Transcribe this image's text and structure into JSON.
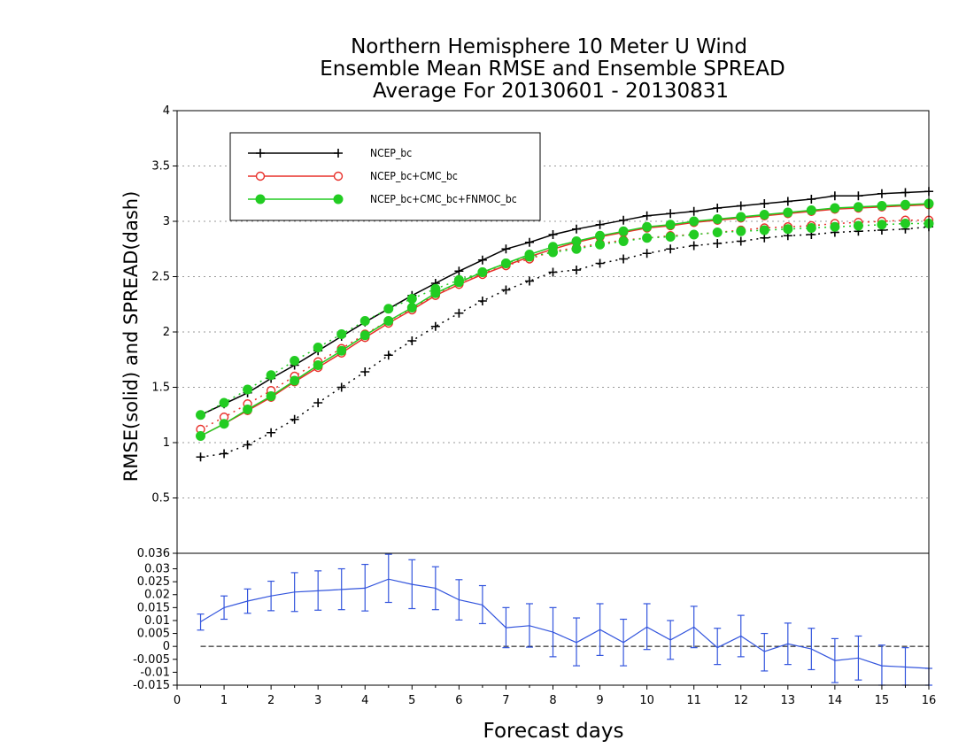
{
  "chart_data": [
    {
      "type": "line",
      "title": [
        "Northern Hemisphere 10 Meter U Wind",
        "Ensemble Mean RMSE and Ensemble SPREAD",
        "Average For 20130601 - 20130831"
      ],
      "ylabel": "RMSE(solid) and SPREAD(dash)",
      "xlabel": "",
      "xlim": [
        0,
        16
      ],
      "ylim": [
        0,
        4
      ],
      "yticks": [
        "0.5",
        "1",
        "1.5",
        "2",
        "2.5",
        "3",
        "3.5",
        "4"
      ],
      "grid": true,
      "legend_position": "top-left",
      "x": [
        0.5,
        1,
        1.5,
        2,
        2.5,
        3,
        3.5,
        4,
        4.5,
        5,
        5.5,
        6,
        6.5,
        7,
        7.5,
        8,
        8.5,
        9,
        9.5,
        10,
        10.5,
        11,
        11.5,
        12,
        12.5,
        13,
        13.5,
        14,
        14.5,
        15,
        15.5,
        16
      ],
      "series": [
        {
          "name": "NCEP_bc",
          "color": "#000000",
          "marker": "plus",
          "rmse": [
            1.25,
            1.35,
            1.45,
            1.58,
            1.7,
            1.83,
            1.96,
            2.09,
            2.21,
            2.33,
            2.44,
            2.55,
            2.65,
            2.75,
            2.81,
            2.88,
            2.93,
            2.97,
            3.01,
            3.05,
            3.07,
            3.09,
            3.12,
            3.14,
            3.16,
            3.18,
            3.2,
            3.23,
            3.23,
            3.25,
            3.26,
            3.27
          ],
          "spread": [
            0.87,
            0.9,
            0.98,
            1.09,
            1.21,
            1.36,
            1.5,
            1.64,
            1.79,
            1.92,
            2.05,
            2.17,
            2.28,
            2.38,
            2.46,
            2.54,
            2.56,
            2.62,
            2.66,
            2.71,
            2.75,
            2.78,
            2.8,
            2.82,
            2.85,
            2.87,
            2.88,
            2.9,
            2.91,
            2.92,
            2.93,
            2.95
          ]
        },
        {
          "name": "NCEP_bc+CMC_bc",
          "color": "#e8302a",
          "marker": "open-circle",
          "rmse": [
            1.06,
            1.17,
            1.29,
            1.41,
            1.55,
            1.68,
            1.81,
            1.95,
            2.08,
            2.2,
            2.33,
            2.43,
            2.52,
            2.6,
            2.68,
            2.75,
            2.81,
            2.86,
            2.9,
            2.94,
            2.96,
            2.99,
            3.01,
            3.03,
            3.05,
            3.07,
            3.09,
            3.11,
            3.12,
            3.13,
            3.14,
            3.15
          ],
          "spread": [
            1.12,
            1.23,
            1.35,
            1.47,
            1.6,
            1.73,
            1.85,
            1.98,
            2.1,
            2.21,
            2.34,
            2.45,
            2.53,
            2.6,
            2.66,
            2.73,
            2.76,
            2.8,
            2.83,
            2.85,
            2.87,
            2.88,
            2.9,
            2.92,
            2.94,
            2.95,
            2.96,
            2.98,
            2.99,
            3.0,
            3.01,
            3.01
          ]
        },
        {
          "name": "NCEP_bc+CMC_bc+FNMOC_bc",
          "color": "#22cc22",
          "marker": "filled-circle",
          "rmse": [
            1.06,
            1.17,
            1.3,
            1.42,
            1.56,
            1.7,
            1.83,
            1.97,
            2.1,
            2.22,
            2.35,
            2.45,
            2.54,
            2.62,
            2.7,
            2.77,
            2.82,
            2.87,
            2.91,
            2.95,
            2.97,
            3.0,
            3.02,
            3.04,
            3.06,
            3.08,
            3.1,
            3.12,
            3.13,
            3.14,
            3.15,
            3.16
          ],
          "spread": [
            1.25,
            1.36,
            1.48,
            1.61,
            1.74,
            1.86,
            1.98,
            2.1,
            2.21,
            2.3,
            2.39,
            2.47,
            2.54,
            2.62,
            2.68,
            2.72,
            2.75,
            2.79,
            2.82,
            2.85,
            2.86,
            2.88,
            2.9,
            2.91,
            2.92,
            2.93,
            2.94,
            2.95,
            2.96,
            2.97,
            2.98,
            2.98
          ]
        }
      ]
    },
    {
      "type": "line",
      "title": "",
      "xlabel": "Forecast days",
      "ylabel": "",
      "xlim": [
        0,
        16
      ],
      "ylim": [
        -0.015,
        0.036
      ],
      "xticks": [
        "0",
        "1",
        "2",
        "3",
        "4",
        "5",
        "6",
        "7",
        "8",
        "9",
        "10",
        "11",
        "12",
        "13",
        "14",
        "15",
        "16"
      ],
      "yticks": [
        "-0.015",
        "-0.01",
        "-0.005",
        "0",
        "0.005",
        "0.01",
        "0.015",
        "0.02",
        "0.025",
        "0.03",
        "0.036"
      ],
      "zero_line": true,
      "series": [
        {
          "name": "",
          "color": "#3355dd",
          "marker": "error-bar",
          "x": [
            0.5,
            1,
            1.5,
            2,
            2.5,
            3,
            3.5,
            4,
            4.5,
            5,
            5.5,
            6,
            6.5,
            7,
            7.5,
            8,
            8.5,
            9,
            9.5,
            10,
            10.5,
            11,
            11.5,
            12,
            12.5,
            13,
            13.5,
            14,
            14.5,
            15,
            15.5,
            16
          ],
          "values": [
            0.0095,
            0.015,
            0.0175,
            0.0195,
            0.021,
            0.0215,
            0.022,
            0.0225,
            0.026,
            0.024,
            0.0225,
            0.018,
            0.016,
            0.0072,
            0.008,
            0.0055,
            0.0015,
            0.0065,
            0.0015,
            0.0075,
            0.0025,
            0.0075,
            -0.0005,
            0.004,
            -0.002,
            0.001,
            -0.001,
            -0.0055,
            -0.0045,
            -0.0075,
            -0.008,
            -0.0085
          ],
          "lower": [
            0.0063,
            0.0105,
            0.0128,
            0.0138,
            0.0135,
            0.014,
            0.0142,
            0.0137,
            0.017,
            0.0146,
            0.0142,
            0.0102,
            0.0088,
            -0.0005,
            -0.0003,
            -0.004,
            -0.0075,
            -0.0035,
            -0.0075,
            -0.0012,
            -0.005,
            -0.0005,
            -0.007,
            -0.004,
            -0.0095,
            -0.007,
            -0.009,
            -0.014,
            -0.013,
            -0.015,
            -0.015,
            -0.015
          ],
          "upper": [
            0.0125,
            0.0195,
            0.0222,
            0.0252,
            0.0285,
            0.0292,
            0.03,
            0.0317,
            0.0356,
            0.0335,
            0.0308,
            0.0258,
            0.0235,
            0.015,
            0.0165,
            0.015,
            0.011,
            0.0165,
            0.0105,
            0.0165,
            0.01,
            0.0155,
            0.007,
            0.012,
            0.005,
            0.009,
            0.007,
            0.003,
            0.004,
            0.0005,
            -0.0005,
            -0.0085
          ]
        }
      ]
    }
  ]
}
